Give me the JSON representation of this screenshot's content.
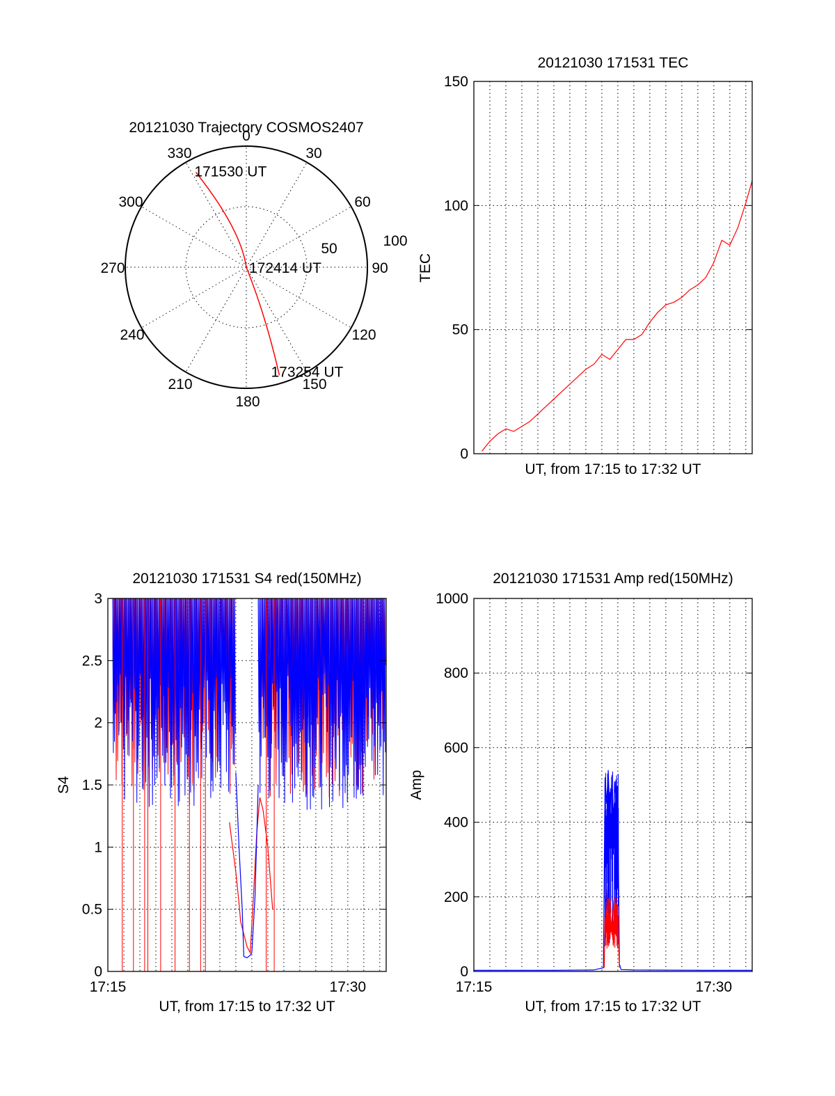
{
  "colors": {
    "primary": "#ff0000",
    "secondary": "#0000ff",
    "axis": "#000000"
  },
  "chart_data": [
    {
      "id": "trajectory",
      "type": "polar",
      "title": "20121030 Trajectory COSMOS2407",
      "angular_ticks": [
        "0",
        "30",
        "60",
        "90",
        "120",
        "150",
        "180",
        "210",
        "240",
        "270",
        "300",
        "330"
      ],
      "radial_ticks": [
        "50",
        "100"
      ],
      "grid": true,
      "track": [
        {
          "time": "171530 UT",
          "azimuth_deg": 332,
          "elevation_deg": 10
        },
        {
          "time": "172414 UT",
          "azimuth_deg": 0,
          "elevation_deg": 90
        },
        {
          "time": "173254 UT",
          "azimuth_deg": 163,
          "elevation_deg": 6
        }
      ],
      "labels": [
        "171530 UT",
        "172414 UT",
        "173254 UT"
      ]
    },
    {
      "id": "tec",
      "type": "line",
      "title": "20121030 171531 TEC",
      "xlabel": "UT, from 17:15 to 17:32 UT",
      "ylabel": "TEC",
      "xlim": [
        0,
        17.4
      ],
      "ylim": [
        0,
        150
      ],
      "yticks": [
        "0",
        "50",
        "100",
        "150"
      ],
      "xticks": [],
      "grid": true,
      "series": [
        {
          "color": "#ff0000",
          "x": [
            0.5,
            1,
            1.5,
            2,
            2.5,
            3,
            3.5,
            4,
            4.5,
            5,
            5.5,
            6,
            6.5,
            7,
            7.5,
            8,
            8.5,
            9,
            9.5,
            10,
            10.5,
            11,
            11.5,
            12,
            12.5,
            13,
            13.5,
            14,
            14.5,
            15,
            15.5,
            16,
            16.5,
            17,
            17.4
          ],
          "y": [
            1,
            5,
            8,
            10,
            9,
            11,
            13,
            16,
            19,
            22,
            25,
            28,
            31,
            34,
            36,
            40,
            38,
            42,
            46,
            46,
            48,
            53,
            57,
            60,
            61,
            63,
            66,
            68,
            71,
            77,
            86,
            84,
            91,
            101,
            110
          ]
        }
      ]
    },
    {
      "id": "s4",
      "type": "line",
      "title": "20121030 171531 S4 red(150MHz)",
      "xlabel": "UT, from 17:15 to 17:32 UT",
      "ylabel": "S4",
      "xlim": [
        0,
        17.4
      ],
      "ylim": [
        0,
        3
      ],
      "yticks": [
        "0",
        "0.5",
        "1",
        "1.5",
        "2",
        "2.5",
        "3"
      ],
      "xticks": [
        {
          "x": 0,
          "label": "17:15"
        },
        {
          "x": 15,
          "label": "17:30"
        }
      ],
      "grid": true,
      "series": [
        {
          "color": "#ff0000",
          "x": [
            7.6,
            7.8,
            8.0,
            8.2,
            8.3,
            8.5,
            8.7,
            8.9,
            9.1,
            9.3,
            9.5,
            9.7,
            10.0,
            10.3
          ],
          "y": [
            1.2,
            1.0,
            0.8,
            0.55,
            0.4,
            0.3,
            0.2,
            0.15,
            0.6,
            1.1,
            1.4,
            1.3,
            1.0,
            0.5
          ]
        },
        {
          "color": "#0000ff",
          "x": [
            8.0,
            8.2,
            8.4,
            8.5,
            8.7,
            8.9,
            9.0,
            9.2,
            9.4
          ],
          "y": [
            1.6,
            1.0,
            0.5,
            0.12,
            0.11,
            0.13,
            0.15,
            0.6,
            1.5
          ]
        }
      ]
    },
    {
      "id": "amp",
      "type": "line",
      "title": "20121030 171531 Amp red(150MHz)",
      "xlabel": "UT, from 17:15 to 17:32 UT",
      "ylabel": "Amp",
      "xlim": [
        0,
        17.4
      ],
      "ylim": [
        0,
        1000
      ],
      "yticks": [
        "0",
        "200",
        "400",
        "600",
        "800",
        "1000"
      ],
      "xticks": [
        {
          "x": 0,
          "label": "17:15"
        },
        {
          "x": 15,
          "label": "17:30"
        }
      ],
      "grid": true,
      "series": [
        {
          "color": "#0000ff",
          "x": [
            0,
            5,
            7.5,
            8.1,
            8.2,
            8.3,
            8.4,
            8.5,
            8.6,
            8.7,
            8.8,
            8.9,
            9.0,
            9.1,
            9.2,
            10,
            15,
            17.4
          ],
          "y": [
            3,
            3,
            4,
            10,
            520,
            450,
            540,
            420,
            500,
            380,
            510,
            430,
            470,
            20,
            5,
            4,
            3,
            3
          ]
        },
        {
          "color": "#ff0000",
          "x": [
            8.15,
            8.2,
            8.3,
            8.4,
            8.5,
            8.6,
            8.7,
            8.8,
            8.9,
            9.0,
            9.1
          ],
          "y": [
            10,
            150,
            230,
            120,
            180,
            110,
            190,
            100,
            180,
            130,
            10
          ]
        }
      ]
    }
  ]
}
